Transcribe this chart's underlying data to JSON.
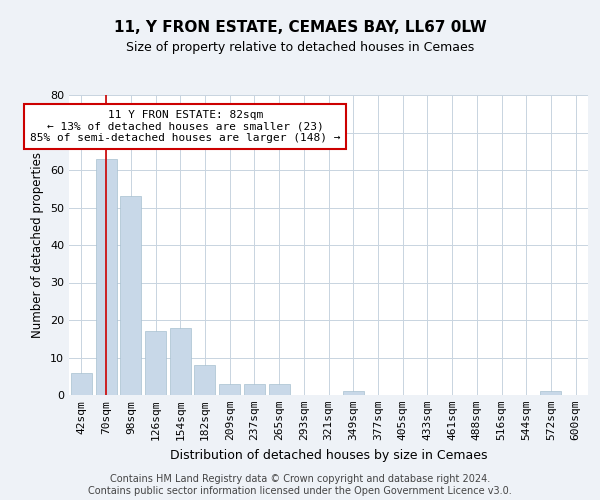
{
  "title1": "11, Y FRON ESTATE, CEMAES BAY, LL67 0LW",
  "title2": "Size of property relative to detached houses in Cemaes",
  "xlabel": "Distribution of detached houses by size in Cemaes",
  "ylabel": "Number of detached properties",
  "bar_color": "#c8d8e8",
  "bar_edgecolor": "#a8c0d0",
  "bin_labels": [
    "42sqm",
    "70sqm",
    "98sqm",
    "126sqm",
    "154sqm",
    "182sqm",
    "209sqm",
    "237sqm",
    "265sqm",
    "293sqm",
    "321sqm",
    "349sqm",
    "377sqm",
    "405sqm",
    "433sqm",
    "461sqm",
    "488sqm",
    "516sqm",
    "544sqm",
    "572sqm",
    "600sqm"
  ],
  "bar_values": [
    6,
    63,
    53,
    17,
    18,
    8,
    3,
    3,
    3,
    0,
    0,
    1,
    0,
    0,
    0,
    0,
    0,
    0,
    0,
    1,
    0
  ],
  "ylim": [
    0,
    80
  ],
  "yticks": [
    0,
    10,
    20,
    30,
    40,
    50,
    60,
    70,
    80
  ],
  "property_bin_index": 1,
  "vline_color": "#cc0000",
  "annotation_text": "11 Y FRON ESTATE: 82sqm\n← 13% of detached houses are smaller (23)\n85% of semi-detached houses are larger (148) →",
  "annotation_box_edgecolor": "#cc0000",
  "footer_text": "Contains HM Land Registry data © Crown copyright and database right 2024.\nContains public sector information licensed under the Open Government Licence v3.0.",
  "background_color": "#eef2f7",
  "plot_background": "#ffffff",
  "grid_color": "#c8d4e0",
  "title1_fontsize": 11,
  "title2_fontsize": 9,
  "ylabel_fontsize": 8.5,
  "xlabel_fontsize": 9,
  "tick_fontsize": 8,
  "annot_fontsize": 8,
  "footer_fontsize": 7
}
